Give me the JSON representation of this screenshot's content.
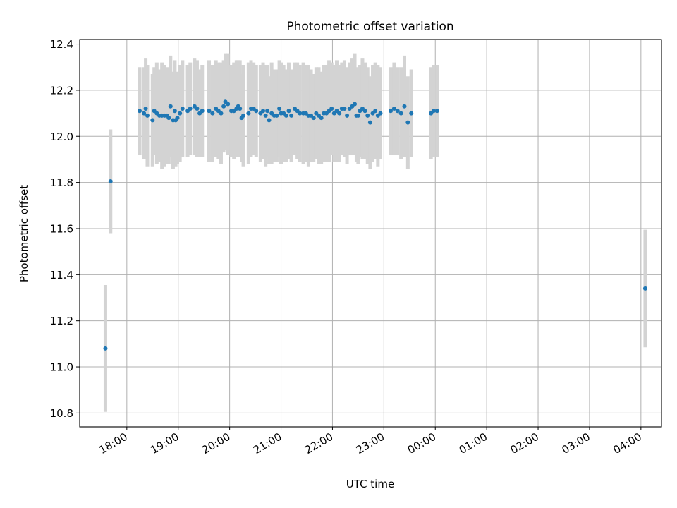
{
  "chart_data": {
    "type": "scatter",
    "title": "Photometric offset variation",
    "xlabel": "UTC time",
    "ylabel": "Photometric offset",
    "x_tick_labels": [
      "18:00",
      "19:00",
      "20:00",
      "21:00",
      "22:00",
      "23:00",
      "00:00",
      "01:00",
      "02:00",
      "03:00",
      "04:00"
    ],
    "y_tick_labels": [
      "10.8",
      "11.0",
      "11.2",
      "11.4",
      "11.6",
      "11.8",
      "12.0",
      "12.2",
      "12.4"
    ],
    "xlim": [
      "17:05",
      "28:24"
    ],
    "ylim": [
      10.74,
      12.42
    ],
    "grid": true,
    "points": [
      {
        "x": "17:35",
        "y": 11.08,
        "err": 0.275
      },
      {
        "x": "17:41",
        "y": 11.805,
        "err": 0.225
      },
      {
        "x": "28:05",
        "y": 11.34,
        "err": 0.255
      },
      {
        "x": "18:15",
        "y": 12.11,
        "err": 0.19
      },
      {
        "x": "18:20",
        "y": 12.1,
        "err": 0.2
      },
      {
        "x": "18:22",
        "y": 12.12,
        "err": 0.22
      },
      {
        "x": "18:24",
        "y": 12.09,
        "err": 0.22
      },
      {
        "x": "18:30",
        "y": 12.07,
        "err": 0.2
      },
      {
        "x": "18:32",
        "y": 12.11,
        "err": 0.19
      },
      {
        "x": "18:35",
        "y": 12.1,
        "err": 0.22
      },
      {
        "x": "18:38",
        "y": 12.09,
        "err": 0.2
      },
      {
        "x": "18:41",
        "y": 12.09,
        "err": 0.23
      },
      {
        "x": "18:44",
        "y": 12.09,
        "err": 0.22
      },
      {
        "x": "18:47",
        "y": 12.09,
        "err": 0.21
      },
      {
        "x": "18:49",
        "y": 12.08,
        "err": 0.2
      },
      {
        "x": "18:51",
        "y": 12.13,
        "err": 0.22
      },
      {
        "x": "18:54",
        "y": 12.07,
        "err": 0.21
      },
      {
        "x": "18:56",
        "y": 12.11,
        "err": 0.22
      },
      {
        "x": "18:57",
        "y": 12.07,
        "err": 0.2
      },
      {
        "x": "18:59",
        "y": 12.08,
        "err": 0.2
      },
      {
        "x": "19:02",
        "y": 12.1,
        "err": 0.21
      },
      {
        "x": "19:05",
        "y": 12.12,
        "err": 0.21
      },
      {
        "x": "19:11",
        "y": 12.11,
        "err": 0.2
      },
      {
        "x": "19:14",
        "y": 12.12,
        "err": 0.2
      },
      {
        "x": "19:19",
        "y": 12.13,
        "err": 0.21
      },
      {
        "x": "19:22",
        "y": 12.12,
        "err": 0.21
      },
      {
        "x": "19:25",
        "y": 12.1,
        "err": 0.19
      },
      {
        "x": "19:28",
        "y": 12.11,
        "err": 0.2
      },
      {
        "x": "19:36",
        "y": 12.11,
        "err": 0.22
      },
      {
        "x": "19:40",
        "y": 12.1,
        "err": 0.21
      },
      {
        "x": "19:44",
        "y": 12.12,
        "err": 0.21
      },
      {
        "x": "19:47",
        "y": 12.11,
        "err": 0.21
      },
      {
        "x": "19:50",
        "y": 12.1,
        "err": 0.22
      },
      {
        "x": "19:53",
        "y": 12.13,
        "err": 0.2
      },
      {
        "x": "19:55",
        "y": 12.15,
        "err": 0.21
      },
      {
        "x": "19:58",
        "y": 12.14,
        "err": 0.22
      },
      {
        "x": "20:02",
        "y": 12.11,
        "err": 0.2
      },
      {
        "x": "20:05",
        "y": 12.11,
        "err": 0.21
      },
      {
        "x": "20:08",
        "y": 12.12,
        "err": 0.21
      },
      {
        "x": "20:10",
        "y": 12.13,
        "err": 0.2
      },
      {
        "x": "20:12",
        "y": 12.12,
        "err": 0.21
      },
      {
        "x": "20:14",
        "y": 12.08,
        "err": 0.19
      },
      {
        "x": "20:16",
        "y": 12.09,
        "err": 0.22
      },
      {
        "x": "20:22",
        "y": 12.1,
        "err": 0.22
      },
      {
        "x": "20:25",
        "y": 12.12,
        "err": 0.21
      },
      {
        "x": "20:28",
        "y": 12.12,
        "err": 0.2
      },
      {
        "x": "20:31",
        "y": 12.11,
        "err": 0.2
      },
      {
        "x": "20:36",
        "y": 12.1,
        "err": 0.21
      },
      {
        "x": "20:39",
        "y": 12.11,
        "err": 0.21
      },
      {
        "x": "20:42",
        "y": 12.09,
        "err": 0.22
      },
      {
        "x": "20:44",
        "y": 12.11,
        "err": 0.2
      },
      {
        "x": "20:46",
        "y": 12.07,
        "err": 0.19
      },
      {
        "x": "20:49",
        "y": 12.1,
        "err": 0.22
      },
      {
        "x": "20:52",
        "y": 12.09,
        "err": 0.2
      },
      {
        "x": "20:55",
        "y": 12.09,
        "err": 0.2
      },
      {
        "x": "20:58",
        "y": 12.12,
        "err": 0.21
      },
      {
        "x": "21:00",
        "y": 12.1,
        "err": 0.22
      },
      {
        "x": "21:03",
        "y": 12.1,
        "err": 0.21
      },
      {
        "x": "21:06",
        "y": 12.09,
        "err": 0.2
      },
      {
        "x": "21:09",
        "y": 12.11,
        "err": 0.21
      },
      {
        "x": "21:12",
        "y": 12.09,
        "err": 0.2
      },
      {
        "x": "21:16",
        "y": 12.12,
        "err": 0.2
      },
      {
        "x": "21:19",
        "y": 12.11,
        "err": 0.21
      },
      {
        "x": "21:22",
        "y": 12.1,
        "err": 0.21
      },
      {
        "x": "21:26",
        "y": 12.1,
        "err": 0.22
      },
      {
        "x": "21:29",
        "y": 12.1,
        "err": 0.21
      },
      {
        "x": "21:32",
        "y": 12.09,
        "err": 0.22
      },
      {
        "x": "21:35",
        "y": 12.09,
        "err": 0.2
      },
      {
        "x": "21:38",
        "y": 12.08,
        "err": 0.19
      },
      {
        "x": "21:41",
        "y": 12.1,
        "err": 0.2
      },
      {
        "x": "21:44",
        "y": 12.09,
        "err": 0.21
      },
      {
        "x": "21:47",
        "y": 12.08,
        "err": 0.2
      },
      {
        "x": "21:50",
        "y": 12.1,
        "err": 0.21
      },
      {
        "x": "21:53",
        "y": 12.1,
        "err": 0.21
      },
      {
        "x": "21:56",
        "y": 12.11,
        "err": 0.22
      },
      {
        "x": "21:59",
        "y": 12.12,
        "err": 0.2
      },
      {
        "x": "22:02",
        "y": 12.1,
        "err": 0.21
      },
      {
        "x": "22:05",
        "y": 12.11,
        "err": 0.22
      },
      {
        "x": "22:08",
        "y": 12.1,
        "err": 0.21
      },
      {
        "x": "22:11",
        "y": 12.12,
        "err": 0.2
      },
      {
        "x": "22:14",
        "y": 12.12,
        "err": 0.21
      },
      {
        "x": "22:17",
        "y": 12.09,
        "err": 0.21
      },
      {
        "x": "22:20",
        "y": 12.12,
        "err": 0.2
      },
      {
        "x": "22:23",
        "y": 12.13,
        "err": 0.21
      },
      {
        "x": "22:26",
        "y": 12.14,
        "err": 0.22
      },
      {
        "x": "22:28",
        "y": 12.09,
        "err": 0.2
      },
      {
        "x": "22:30",
        "y": 12.09,
        "err": 0.21
      },
      {
        "x": "22:32",
        "y": 12.11,
        "err": 0.2
      },
      {
        "x": "22:35",
        "y": 12.12,
        "err": 0.22
      },
      {
        "x": "22:38",
        "y": 12.11,
        "err": 0.21
      },
      {
        "x": "22:41",
        "y": 12.09,
        "err": 0.21
      },
      {
        "x": "22:44",
        "y": 12.06,
        "err": 0.2
      },
      {
        "x": "22:47",
        "y": 12.1,
        "err": 0.21
      },
      {
        "x": "22:50",
        "y": 12.11,
        "err": 0.21
      },
      {
        "x": "22:53",
        "y": 12.09,
        "err": 0.22
      },
      {
        "x": "22:56",
        "y": 12.1,
        "err": 0.2
      },
      {
        "x": "23:08",
        "y": 12.11,
        "err": 0.19
      },
      {
        "x": "23:12",
        "y": 12.12,
        "err": 0.2
      },
      {
        "x": "23:16",
        "y": 12.11,
        "err": 0.19
      },
      {
        "x": "23:20",
        "y": 12.1,
        "err": 0.2
      },
      {
        "x": "23:24",
        "y": 12.13,
        "err": 0.22
      },
      {
        "x": "23:28",
        "y": 12.06,
        "err": 0.2
      },
      {
        "x": "23:32",
        "y": 12.1,
        "err": 0.19
      },
      {
        "x": "23:55",
        "y": 12.1,
        "err": 0.2
      },
      {
        "x": "23:58",
        "y": 12.11,
        "err": 0.2
      },
      {
        "x": "24:02",
        "y": 12.11,
        "err": 0.2
      }
    ],
    "colors": {
      "points": "#1f77b4",
      "errorbars": "#d3d3d3",
      "grid": "#b0b0b0",
      "axes": "#000000"
    }
  }
}
